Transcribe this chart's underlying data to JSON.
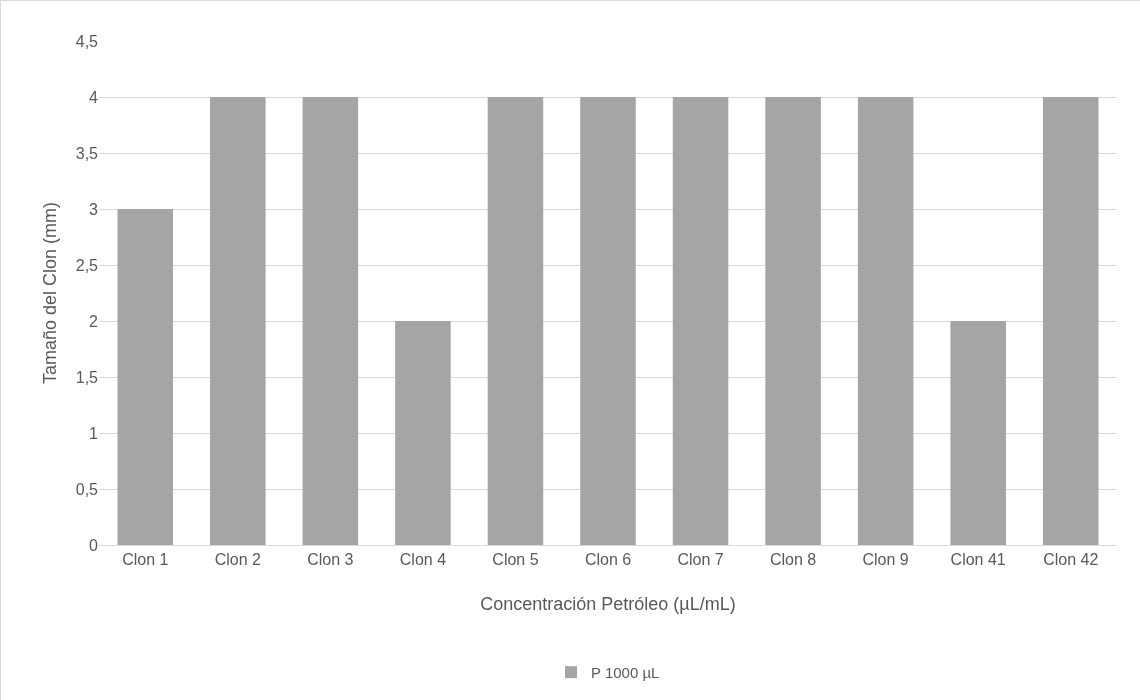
{
  "chart_data": {
    "type": "bar",
    "xlabel": "Concentración Petróleo (µL/mL)",
    "ylabel": "Tamaño del Clon (mm)",
    "categories": [
      "Clon 1",
      "Clon 2",
      "Clon 3",
      "Clon 4",
      "Clon 5",
      "Clon 6",
      "Clon 7",
      "Clon 8",
      "Clon 9",
      "Clon 41",
      "Clon 42"
    ],
    "series": [
      {
        "name": "P 1000 µL",
        "color": "#a5a5a5",
        "values": [
          3,
          4,
          4,
          2,
          4,
          4,
          4,
          4,
          4,
          2,
          4
        ]
      }
    ],
    "ylim": [
      0,
      4.5
    ],
    "yticks": [
      0,
      {
        "value": 0.5,
        "label": "0,5"
      },
      1,
      {
        "value": 1.5,
        "label": "1,5"
      },
      2,
      {
        "value": 2.5,
        "label": "2,5"
      },
      3,
      {
        "value": 3.5,
        "label": "3,5"
      },
      4,
      {
        "value": 4.5,
        "label": "4,5"
      }
    ],
    "grid": "y",
    "legend": "bottom"
  }
}
